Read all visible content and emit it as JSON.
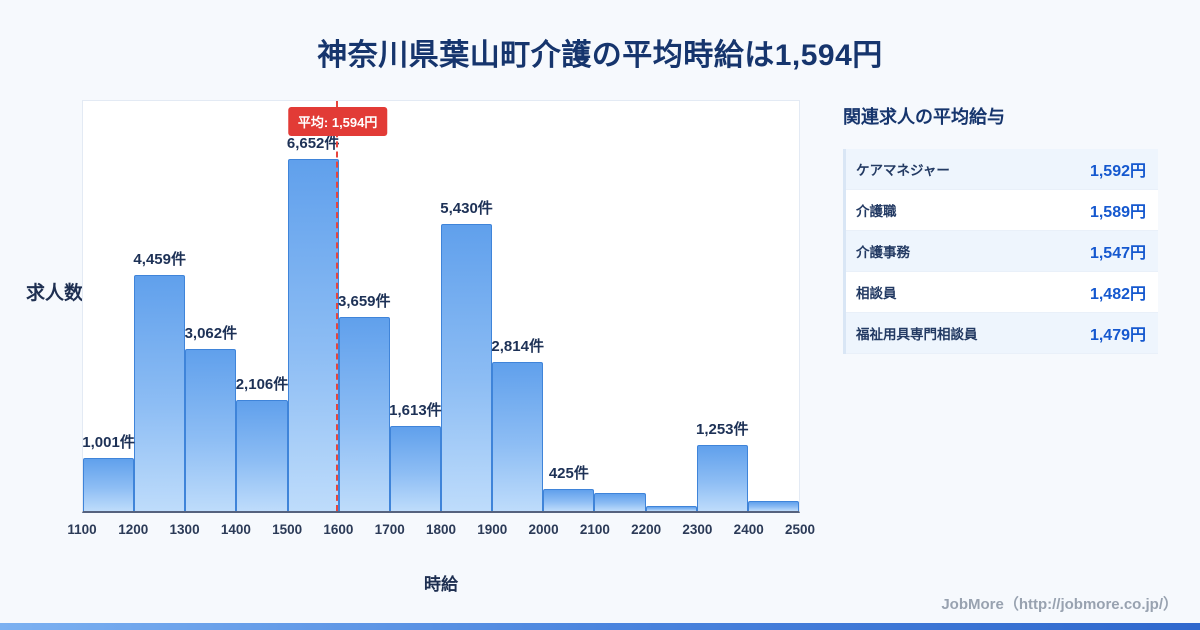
{
  "title": "神奈川県葉山町介護の平均時給は1,594円",
  "chart_data": {
    "type": "bar",
    "title": "神奈川県葉山町介護の平均時給は1,594円",
    "xlabel": "時給",
    "ylabel": "求人数",
    "x_ticks": [
      "1100",
      "1200",
      "1300",
      "1400",
      "1500",
      "1600",
      "1700",
      "1800",
      "1900",
      "2000",
      "2100",
      "2200",
      "2300",
      "2400",
      "2500"
    ],
    "bin_width": 100,
    "values": [
      1001,
      4459,
      3062,
      2106,
      6652,
      3659,
      1613,
      5430,
      2814,
      425,
      340,
      95,
      1253,
      190
    ],
    "bar_labels": [
      "1,001件",
      "4,459件",
      "3,062件",
      "2,106件",
      "6,652件",
      "3,659件",
      "1,613件",
      "5,430件",
      "2,814件",
      "425件",
      "",
      "",
      "1,253件",
      ""
    ],
    "unit": "件",
    "average": 1594,
    "average_label": "平均: 1,594円",
    "xlim": [
      1100,
      2500
    ],
    "ylim": [
      0,
      7000
    ],
    "grid": false,
    "accent_color": "#4a8fe0",
    "average_line_color": "#e8453c"
  },
  "panel": {
    "title": "関連求人の平均給与",
    "rows": [
      {
        "name": "ケアマネジャー",
        "value": "1,592円"
      },
      {
        "name": "介護職",
        "value": "1,589円"
      },
      {
        "name": "介護事務",
        "value": "1,547円"
      },
      {
        "name": "相談員",
        "value": "1,482円"
      },
      {
        "name": "福祉用具専門相談員",
        "value": "1,479円"
      }
    ]
  },
  "footer": {
    "credit": "JobMore（http://jobmore.co.jp/）"
  }
}
